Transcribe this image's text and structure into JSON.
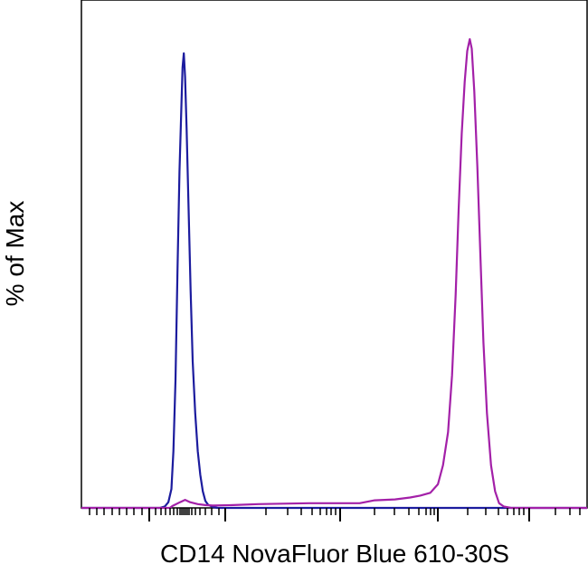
{
  "chart_data": {
    "type": "line",
    "title": "",
    "xlabel": "CD14 NovaFluor Blue 610-30S",
    "ylabel": "% of Max",
    "x_scale": "biexponential (unlabeled ticks)",
    "y_ticks_visible": false,
    "ylim": [
      0,
      100
    ],
    "grid": false,
    "legend": "none",
    "series": [
      {
        "color": "#1c1c9e",
        "points": [
          [
            0.0,
            0
          ],
          [
            15.5,
            0
          ],
          [
            16.5,
            0.3
          ],
          [
            17.2,
            1.2
          ],
          [
            17.8,
            4
          ],
          [
            18.2,
            12
          ],
          [
            18.6,
            27
          ],
          [
            19.0,
            50
          ],
          [
            19.4,
            71
          ],
          [
            19.8,
            86
          ],
          [
            20.0,
            93
          ],
          [
            20.25,
            96
          ],
          [
            20.5,
            91
          ],
          [
            20.8,
            80
          ],
          [
            21.2,
            63
          ],
          [
            21.6,
            46
          ],
          [
            22.0,
            31
          ],
          [
            22.5,
            20
          ],
          [
            23.0,
            12
          ],
          [
            23.5,
            7
          ],
          [
            24.0,
            3.5
          ],
          [
            24.5,
            1.5
          ],
          [
            25.0,
            0.7
          ],
          [
            26.0,
            0.2
          ],
          [
            27.0,
            0
          ],
          [
            100.0,
            0
          ]
        ]
      },
      {
        "color": "#a320a8",
        "points": [
          [
            0.0,
            0
          ],
          [
            17.5,
            0
          ],
          [
            18.0,
            0.4
          ],
          [
            19.5,
            1.2
          ],
          [
            20.5,
            1.7
          ],
          [
            21.5,
            1.2
          ],
          [
            23.0,
            0.8
          ],
          [
            24.5,
            0.6
          ],
          [
            26.0,
            0.5
          ],
          [
            30.0,
            0.6
          ],
          [
            35.0,
            0.8
          ],
          [
            40.0,
            0.9
          ],
          [
            45.0,
            1.0
          ],
          [
            50.0,
            1.0
          ],
          [
            55.0,
            1.0
          ],
          [
            58.0,
            1.6
          ],
          [
            62.0,
            1.8
          ],
          [
            65.0,
            2.2
          ],
          [
            67.0,
            2.6
          ],
          [
            69.0,
            3.2
          ],
          [
            70.5,
            5
          ],
          [
            71.5,
            9
          ],
          [
            72.5,
            16
          ],
          [
            73.3,
            28
          ],
          [
            74.0,
            45
          ],
          [
            74.6,
            63
          ],
          [
            75.2,
            79
          ],
          [
            75.8,
            90
          ],
          [
            76.3,
            96.5
          ],
          [
            76.8,
            99
          ],
          [
            77.2,
            97
          ],
          [
            77.7,
            88
          ],
          [
            78.3,
            72
          ],
          [
            78.9,
            53
          ],
          [
            79.5,
            35
          ],
          [
            80.2,
            20
          ],
          [
            81.0,
            9
          ],
          [
            81.8,
            3.5
          ],
          [
            82.6,
            1
          ],
          [
            83.5,
            0.3
          ],
          [
            85.0,
            0
          ],
          [
            100.0,
            0
          ]
        ]
      }
    ]
  }
}
